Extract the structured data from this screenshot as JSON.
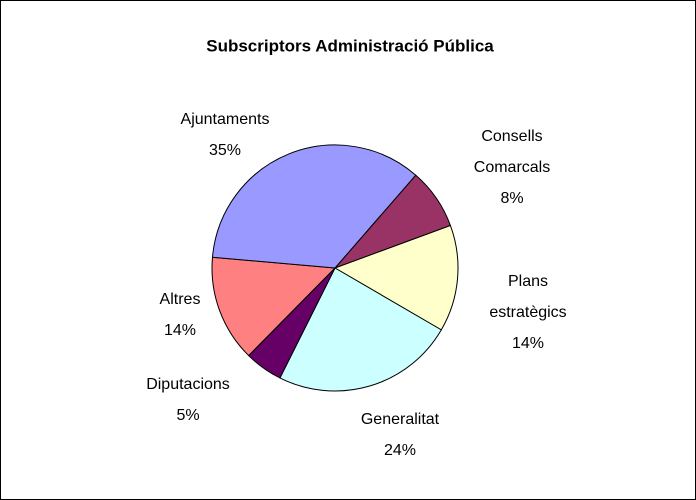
{
  "chart_data": {
    "type": "pie",
    "title": "Subscriptors Administració Pública",
    "categories": [
      "Consells Comarcals",
      "Plans estratègics",
      "Generalitat",
      "Diputacions",
      "Altres",
      "Ajuntaments"
    ],
    "values": [
      8,
      14,
      24,
      5,
      14,
      35
    ],
    "value_labels": [
      "8%",
      "14%",
      "24%",
      "5%",
      "14%",
      "35%"
    ],
    "colors": [
      "#993366",
      "#ffffcc",
      "#ccffff",
      "#660066",
      "#ff8080",
      "#9999ff"
    ]
  }
}
